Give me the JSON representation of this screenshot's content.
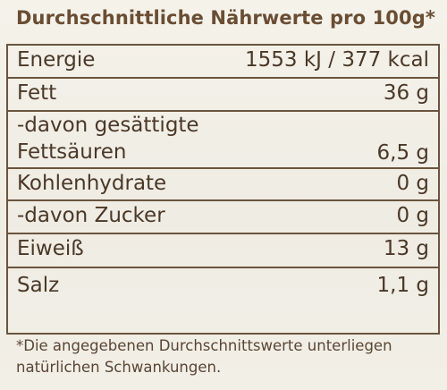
{
  "title": "Durchschnittliche Nährwerte pro 100g*",
  "rows": [
    {
      "name": "Energie",
      "value": "1553 kJ / 377 kcal"
    },
    {
      "name": "Fett",
      "value": "36 g"
    },
    {
      "name_line1": "-davon gesättigte",
      "name_line2": " Fettsäuren",
      "value": "6,5 g"
    },
    {
      "name": "Kohlenhydrate",
      "value": "0 g"
    },
    {
      "name": "-davon Zucker",
      "value": "0 g"
    },
    {
      "name": "Eiweiß",
      "value": "13 g"
    },
    {
      "name": "Salz",
      "value": "1,1 g"
    }
  ],
  "footnote": {
    "line1": "*Die angegebenen Durchschnittswerte unterliegen",
    "line2": "natürlichen Schwankungen."
  }
}
